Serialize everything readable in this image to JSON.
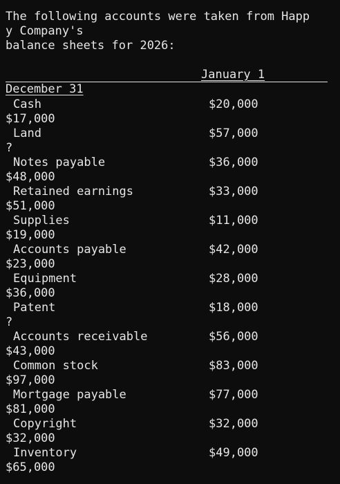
{
  "intro": {
    "line1": "The following accounts were taken from Happ",
    "line2": "y Company's",
    "line3": "balance sheets for 2026:"
  },
  "headers": {
    "january": "January 1",
    "december": "December 31"
  },
  "accounts": [
    {
      "name": "Cash",
      "jan": "$20,000",
      "dec": "$17,000"
    },
    {
      "name": "Land",
      "jan": "$57,000",
      "dec": "?"
    },
    {
      "name": "Notes payable",
      "jan": "$36,000",
      "dec": "$48,000"
    },
    {
      "name": "Retained earnings",
      "jan": "$33,000",
      "dec": "$51,000"
    },
    {
      "name": "Supplies",
      "jan": "$11,000",
      "dec": "$19,000"
    },
    {
      "name": "Accounts payable",
      "jan": "$42,000",
      "dec": "$23,000"
    },
    {
      "name": "Equipment",
      "jan": "$28,000",
      "dec": "$36,000"
    },
    {
      "name": "Patent",
      "jan": "$18,000",
      "dec": "?"
    },
    {
      "name": "Accounts receivable",
      "jan": "$56,000",
      "dec": "$43,000"
    },
    {
      "name": "Common stock",
      "jan": "$83,000",
      "dec": "$97,000"
    },
    {
      "name": "Mortgage payable",
      "jan": "$77,000",
      "dec": "$81,000"
    },
    {
      "name": "Copyright",
      "jan": "$32,000",
      "dec": "$32,000"
    },
    {
      "name": "Inventory",
      "jan": "$49,000",
      "dec": "$65,000"
    }
  ]
}
